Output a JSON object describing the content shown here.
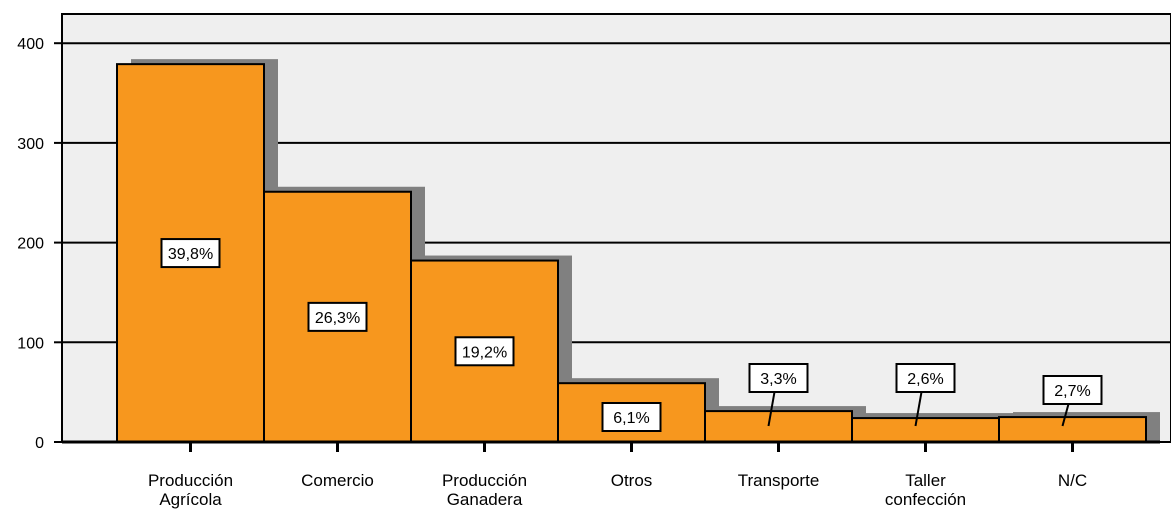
{
  "chart_data": {
    "type": "bar",
    "categories": [
      [
        "Producción",
        "Agrícola"
      ],
      [
        "Comercio"
      ],
      [
        "Producción",
        "Ganadera"
      ],
      [
        "Otros"
      ],
      [
        "Transporte"
      ],
      [
        "Taller",
        "confección"
      ],
      [
        "N/C"
      ]
    ],
    "values": [
      379,
      251,
      182,
      59,
      31,
      24,
      25
    ],
    "percent_labels": [
      "39,8%",
      "26,3%",
      "19,2%",
      "6,1%",
      "3,3%",
      "2,6%",
      "2,7%"
    ],
    "y_ticks": [
      "0",
      "100",
      "200",
      "300",
      "400"
    ],
    "ylim": [
      0,
      430
    ],
    "grid": true,
    "bar_color": "#f7971e",
    "shadow_color": "#808080",
    "plot_background": "#efefef"
  }
}
